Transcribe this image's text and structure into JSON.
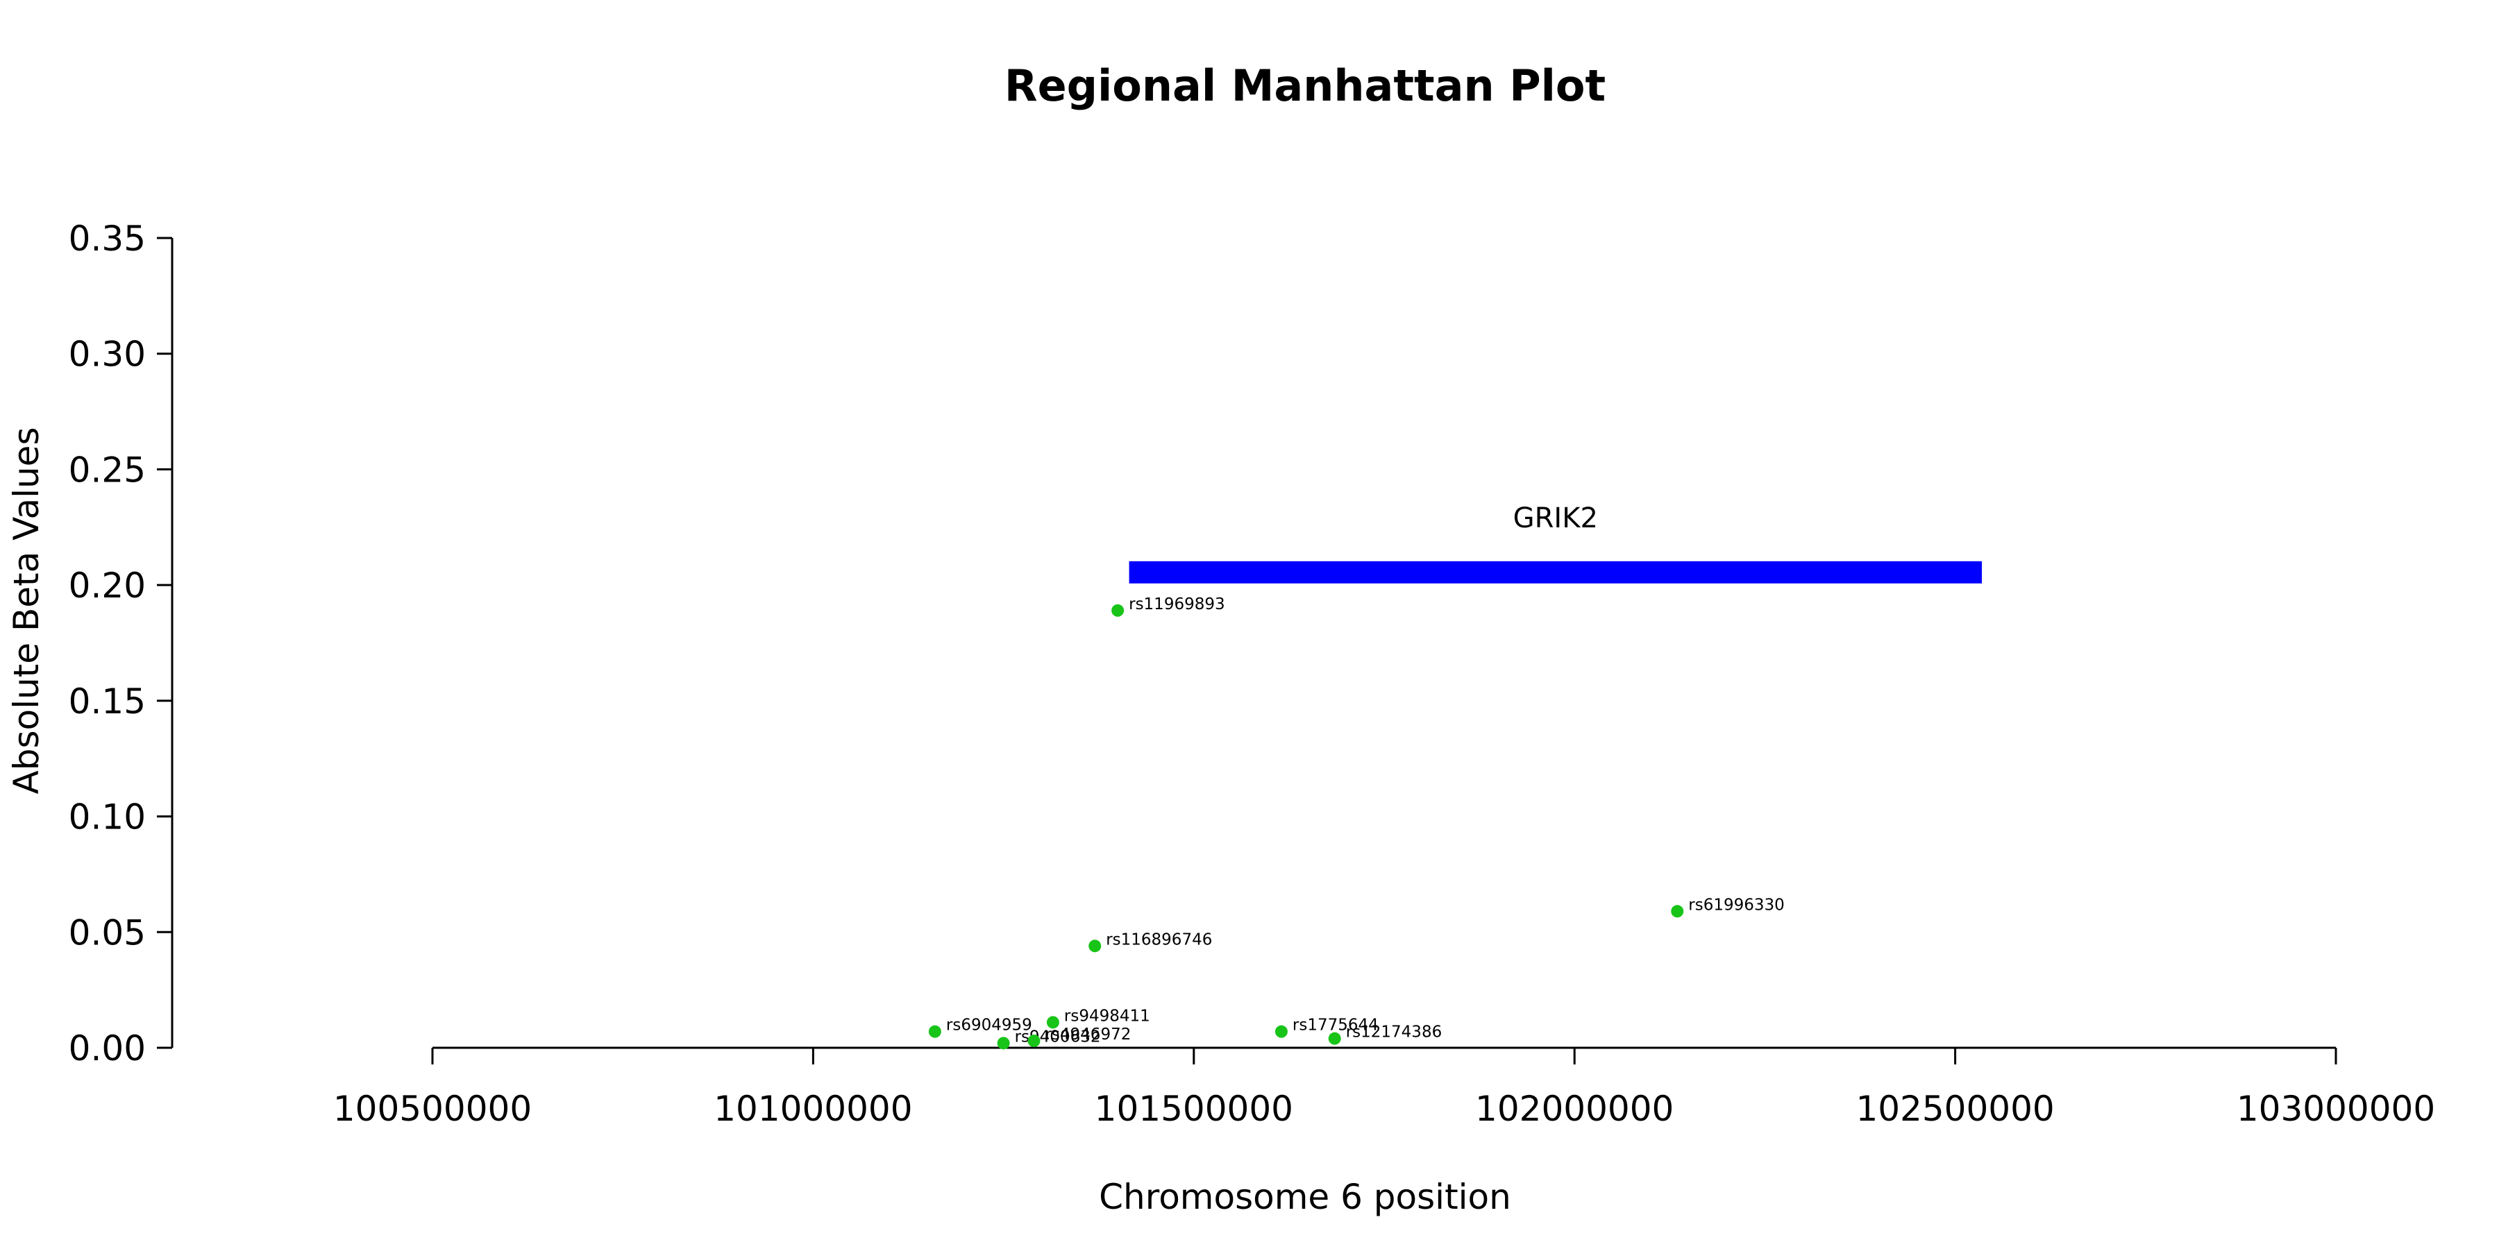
{
  "chart_data": {
    "type": "scatter",
    "title": "Regional Manhattan Plot",
    "xlabel": "Chromosome 6 position",
    "ylabel": "Absolute Beta Values",
    "xlim": [
      100500000,
      103000000
    ],
    "ylim": [
      0,
      0.35
    ],
    "x_ticks": [
      "100500000",
      "101000000",
      "101500000",
      "102000000",
      "102500000",
      "103000000"
    ],
    "y_ticks": [
      "0.00",
      "0.05",
      "0.10",
      "0.15",
      "0.20",
      "0.25",
      "0.30",
      "0.35"
    ],
    "grid": false,
    "point_color": "#18c418",
    "points": [
      {
        "label": "rs11969893",
        "x": 101400000,
        "y": 0.189
      },
      {
        "label": "rs61996330",
        "x": 102135000,
        "y": 0.059
      },
      {
        "label": "rs116896746",
        "x": 101370000,
        "y": 0.044
      },
      {
        "label": "rs6904959",
        "x": 101160000,
        "y": 0.007
      },
      {
        "label": "rs9498411",
        "x": 101315000,
        "y": 0.011
      },
      {
        "label": "rs1775644",
        "x": 101615000,
        "y": 0.007
      },
      {
        "label": "rs12174386",
        "x": 101685000,
        "y": 0.004
      },
      {
        "label": "rs9400632",
        "x": 101250000,
        "y": 0.002
      },
      {
        "label": "rs4946972",
        "x": 101290000,
        "y": 0.003
      }
    ],
    "genes": [
      {
        "name": "GRIK2",
        "start": 101415000,
        "end": 102535000,
        "y": 0.2055,
        "color": "#0000ff"
      }
    ]
  }
}
